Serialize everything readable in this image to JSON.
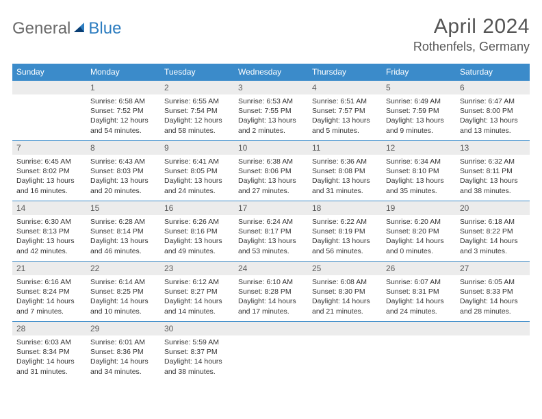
{
  "brand": {
    "part1": "General",
    "part2": "Blue"
  },
  "title": "April 2024",
  "location": "Rothenfels, Germany",
  "colors": {
    "header_bg": "#3b8bca",
    "header_text": "#ffffff",
    "daynum_bg": "#ececec",
    "border": "#3b8bca",
    "title_color": "#555555",
    "logo_gray": "#6a6a6a",
    "logo_blue": "#2d7dc0"
  },
  "weekdays": [
    "Sunday",
    "Monday",
    "Tuesday",
    "Wednesday",
    "Thursday",
    "Friday",
    "Saturday"
  ],
  "layout": {
    "first_weekday_index": 1,
    "rows": 5,
    "cols": 7
  },
  "days": [
    {
      "n": 1,
      "sunrise": "6:58 AM",
      "sunset": "7:52 PM",
      "daylight": "12 hours and 54 minutes."
    },
    {
      "n": 2,
      "sunrise": "6:55 AM",
      "sunset": "7:54 PM",
      "daylight": "12 hours and 58 minutes."
    },
    {
      "n": 3,
      "sunrise": "6:53 AM",
      "sunset": "7:55 PM",
      "daylight": "13 hours and 2 minutes."
    },
    {
      "n": 4,
      "sunrise": "6:51 AM",
      "sunset": "7:57 PM",
      "daylight": "13 hours and 5 minutes."
    },
    {
      "n": 5,
      "sunrise": "6:49 AM",
      "sunset": "7:59 PM",
      "daylight": "13 hours and 9 minutes."
    },
    {
      "n": 6,
      "sunrise": "6:47 AM",
      "sunset": "8:00 PM",
      "daylight": "13 hours and 13 minutes."
    },
    {
      "n": 7,
      "sunrise": "6:45 AM",
      "sunset": "8:02 PM",
      "daylight": "13 hours and 16 minutes."
    },
    {
      "n": 8,
      "sunrise": "6:43 AM",
      "sunset": "8:03 PM",
      "daylight": "13 hours and 20 minutes."
    },
    {
      "n": 9,
      "sunrise": "6:41 AM",
      "sunset": "8:05 PM",
      "daylight": "13 hours and 24 minutes."
    },
    {
      "n": 10,
      "sunrise": "6:38 AM",
      "sunset": "8:06 PM",
      "daylight": "13 hours and 27 minutes."
    },
    {
      "n": 11,
      "sunrise": "6:36 AM",
      "sunset": "8:08 PM",
      "daylight": "13 hours and 31 minutes."
    },
    {
      "n": 12,
      "sunrise": "6:34 AM",
      "sunset": "8:10 PM",
      "daylight": "13 hours and 35 minutes."
    },
    {
      "n": 13,
      "sunrise": "6:32 AM",
      "sunset": "8:11 PM",
      "daylight": "13 hours and 38 minutes."
    },
    {
      "n": 14,
      "sunrise": "6:30 AM",
      "sunset": "8:13 PM",
      "daylight": "13 hours and 42 minutes."
    },
    {
      "n": 15,
      "sunrise": "6:28 AM",
      "sunset": "8:14 PM",
      "daylight": "13 hours and 46 minutes."
    },
    {
      "n": 16,
      "sunrise": "6:26 AM",
      "sunset": "8:16 PM",
      "daylight": "13 hours and 49 minutes."
    },
    {
      "n": 17,
      "sunrise": "6:24 AM",
      "sunset": "8:17 PM",
      "daylight": "13 hours and 53 minutes."
    },
    {
      "n": 18,
      "sunrise": "6:22 AM",
      "sunset": "8:19 PM",
      "daylight": "13 hours and 56 minutes."
    },
    {
      "n": 19,
      "sunrise": "6:20 AM",
      "sunset": "8:20 PM",
      "daylight": "14 hours and 0 minutes."
    },
    {
      "n": 20,
      "sunrise": "6:18 AM",
      "sunset": "8:22 PM",
      "daylight": "14 hours and 3 minutes."
    },
    {
      "n": 21,
      "sunrise": "6:16 AM",
      "sunset": "8:24 PM",
      "daylight": "14 hours and 7 minutes."
    },
    {
      "n": 22,
      "sunrise": "6:14 AM",
      "sunset": "8:25 PM",
      "daylight": "14 hours and 10 minutes."
    },
    {
      "n": 23,
      "sunrise": "6:12 AM",
      "sunset": "8:27 PM",
      "daylight": "14 hours and 14 minutes."
    },
    {
      "n": 24,
      "sunrise": "6:10 AM",
      "sunset": "8:28 PM",
      "daylight": "14 hours and 17 minutes."
    },
    {
      "n": 25,
      "sunrise": "6:08 AM",
      "sunset": "8:30 PM",
      "daylight": "14 hours and 21 minutes."
    },
    {
      "n": 26,
      "sunrise": "6:07 AM",
      "sunset": "8:31 PM",
      "daylight": "14 hours and 24 minutes."
    },
    {
      "n": 27,
      "sunrise": "6:05 AM",
      "sunset": "8:33 PM",
      "daylight": "14 hours and 28 minutes."
    },
    {
      "n": 28,
      "sunrise": "6:03 AM",
      "sunset": "8:34 PM",
      "daylight": "14 hours and 31 minutes."
    },
    {
      "n": 29,
      "sunrise": "6:01 AM",
      "sunset": "8:36 PM",
      "daylight": "14 hours and 34 minutes."
    },
    {
      "n": 30,
      "sunrise": "5:59 AM",
      "sunset": "8:37 PM",
      "daylight": "14 hours and 38 minutes."
    }
  ],
  "labels": {
    "sunrise": "Sunrise:",
    "sunset": "Sunset:",
    "daylight": "Daylight:"
  }
}
